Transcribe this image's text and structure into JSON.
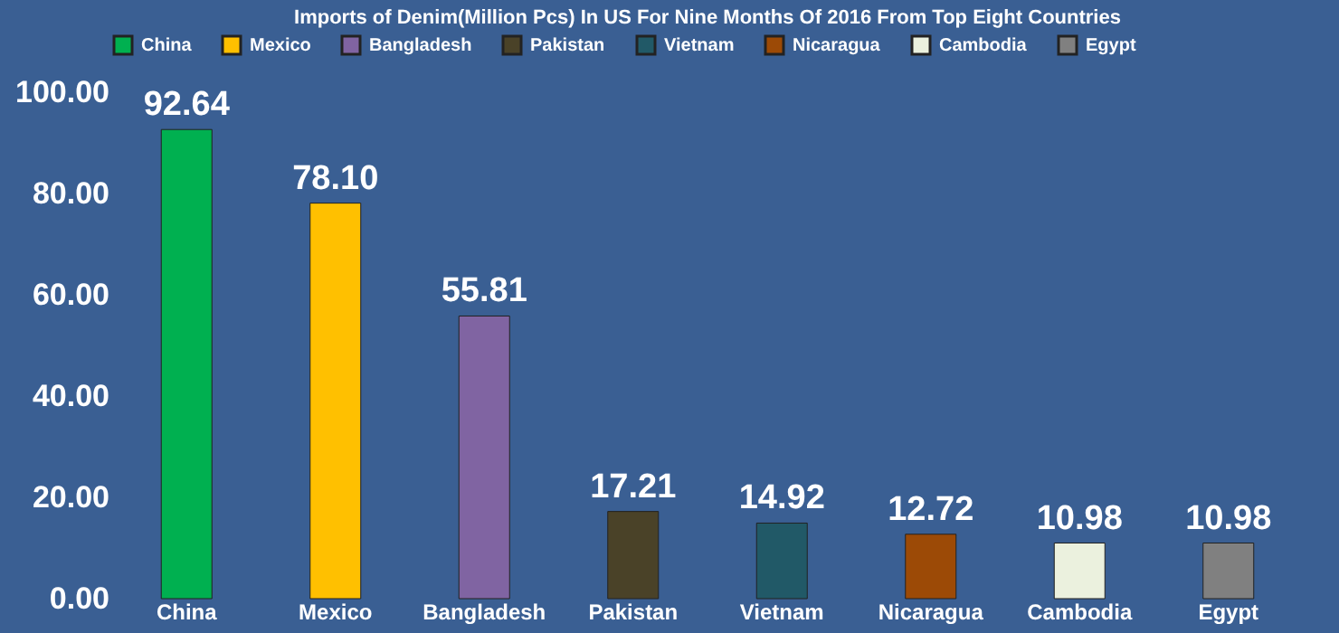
{
  "chart_data": {
    "type": "bar",
    "title": "Imports of Denim(Million Pcs) In US For Nine Months Of 2016 From Top Eight Countries",
    "categories": [
      "China",
      "Mexico",
      "Bangladesh",
      "Pakistan",
      "Vietnam",
      "Nicaragua",
      "Cambodia",
      "Egypt"
    ],
    "series": [
      {
        "name": "China",
        "color": "#00b050",
        "values": [
          92.64,
          null,
          null,
          null,
          null,
          null,
          null,
          null
        ],
        "value_labels": [
          "92.64",
          null,
          null,
          null,
          null,
          null,
          null,
          null
        ]
      },
      {
        "name": "Mexico",
        "color": "#ffc000",
        "values": [
          null,
          78.1,
          null,
          null,
          null,
          null,
          null,
          null
        ],
        "value_labels": [
          null,
          "78.10",
          null,
          null,
          null,
          null,
          null,
          null
        ]
      },
      {
        "name": "Bangladesh",
        "color": "#8064a2",
        "values": [
          null,
          null,
          55.81,
          null,
          null,
          null,
          null,
          null
        ],
        "value_labels": [
          null,
          null,
          "55.81",
          null,
          null,
          null,
          null,
          null
        ]
      },
      {
        "name": "Pakistan",
        "color": "#4a4228",
        "values": [
          null,
          null,
          null,
          17.21,
          null,
          null,
          null,
          null
        ],
        "value_labels": [
          null,
          null,
          null,
          "17.21",
          null,
          null,
          null,
          null
        ]
      },
      {
        "name": "Vietnam",
        "color": "#215967",
        "values": [
          null,
          null,
          null,
          null,
          14.92,
          null,
          null,
          null
        ],
        "value_labels": [
          null,
          null,
          null,
          null,
          "14.92",
          null,
          null,
          null
        ]
      },
      {
        "name": "Nicaragua",
        "color": "#9c4a06",
        "values": [
          null,
          null,
          null,
          null,
          null,
          12.72,
          null,
          null
        ],
        "value_labels": [
          null,
          null,
          null,
          null,
          null,
          "12.72",
          null,
          null
        ]
      },
      {
        "name": "Cambodia",
        "color": "#ebf1de",
        "values": [
          null,
          null,
          null,
          null,
          null,
          null,
          10.98,
          null
        ],
        "value_labels": [
          null,
          null,
          null,
          null,
          null,
          null,
          "10.98",
          null
        ]
      },
      {
        "name": "Egypt",
        "color": "#808080",
        "values": [
          null,
          null,
          null,
          null,
          null,
          null,
          null,
          10.98
        ],
        "value_labels": [
          null,
          null,
          null,
          null,
          null,
          null,
          null,
          "10.98"
        ]
      }
    ],
    "ylim": [
      0,
      100
    ],
    "yticks": [
      {
        "value": 0,
        "label": "0.00"
      },
      {
        "value": 20,
        "label": "20.00"
      },
      {
        "value": 40,
        "label": "40.00"
      },
      {
        "value": 60,
        "label": "60.00"
      },
      {
        "value": 80,
        "label": "80.00"
      },
      {
        "value": 100,
        "label": "100.00"
      }
    ],
    "grid": false,
    "legend": "top"
  }
}
